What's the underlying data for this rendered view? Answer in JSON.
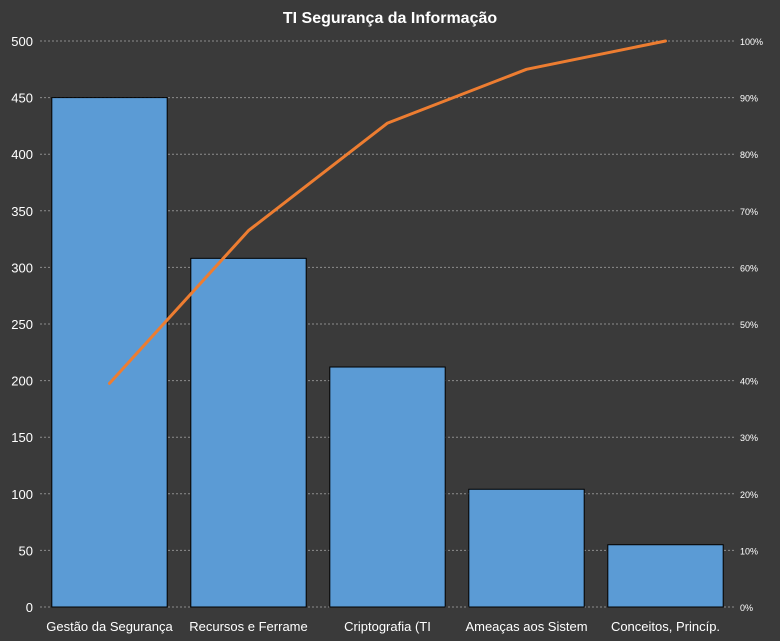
{
  "colors": {
    "background": "#3a3a3a",
    "bar": "#5b9bd5",
    "bar_border": "#000000",
    "line": "#ed7d31",
    "grid": "#8c8c8c",
    "text": "#ffffff"
  },
  "chart_data": {
    "type": "bar",
    "title": "TI Segurança da Informação",
    "categories": [
      "Gestão da Segurança",
      "Recursos e Ferrame",
      "Criptografia (TI",
      "Ameaças aos Sistem",
      "Conceitos, Princíp."
    ],
    "series": [
      {
        "values": [
          450,
          308,
          212,
          104,
          55
        ]
      },
      {
        "type": "line",
        "axis": "secondary",
        "values": [
          0.395,
          0.665,
          0.855,
          0.95,
          1.0
        ]
      }
    ],
    "ylim": [
      0,
      500
    ],
    "yticks": [
      "0",
      "50",
      "100",
      "150",
      "200",
      "250",
      "300",
      "350",
      "400",
      "450",
      "500"
    ],
    "y2lim": [
      0,
      1
    ],
    "y2ticks": [
      "0%",
      "10%",
      "20%",
      "30%",
      "40%",
      "50%",
      "60%",
      "70%",
      "80%",
      "90%",
      "100%"
    ],
    "grid": true,
    "legend": "none"
  }
}
